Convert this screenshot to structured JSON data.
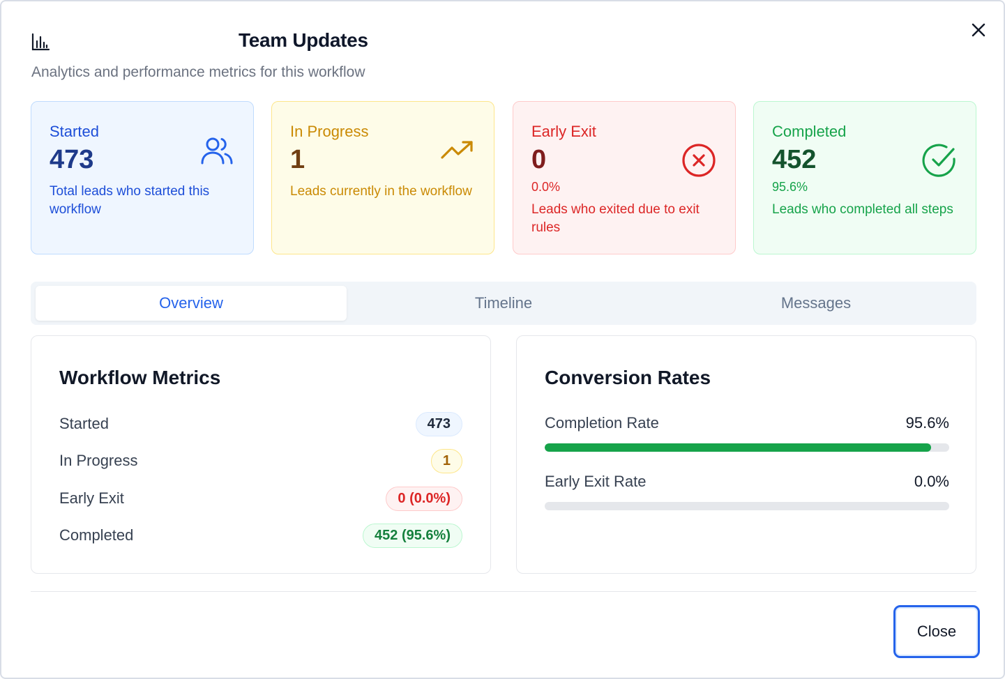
{
  "dialog": {
    "title": "Team Updates",
    "subtitle": "Analytics and performance metrics for this workflow",
    "title_icon": "bar-chart-icon",
    "close_icon": "close-icon"
  },
  "cards": {
    "started": {
      "label": "Started",
      "value": "473",
      "description": "Total leads who started this workflow",
      "icon": "users-icon",
      "color": "#1d4ed8"
    },
    "in_progress": {
      "label": "In Progress",
      "value": "1",
      "description": "Leads currently in the workflow",
      "icon": "trending-up-icon",
      "color": "#ca8a04"
    },
    "early_exit": {
      "label": "Early Exit",
      "value": "0",
      "percent": "0.0%",
      "description": "Leads who exited due to exit rules",
      "icon": "x-circle-icon",
      "color": "#dc2626"
    },
    "completed": {
      "label": "Completed",
      "value": "452",
      "percent": "95.6%",
      "description": "Leads who completed all steps",
      "icon": "check-circle-icon",
      "color": "#16a34a"
    }
  },
  "tabs": [
    {
      "label": "Overview",
      "active": true
    },
    {
      "label": "Timeline",
      "active": false
    },
    {
      "label": "Messages",
      "active": false
    }
  ],
  "metrics": {
    "title": "Workflow Metrics",
    "rows": [
      {
        "label": "Started",
        "badge": "473"
      },
      {
        "label": "In Progress",
        "badge": "1"
      },
      {
        "label": "Early Exit",
        "badge": "0 (0.0%)"
      },
      {
        "label": "Completed",
        "badge": "452 (95.6%)"
      }
    ]
  },
  "rates": {
    "title": "Conversion Rates",
    "rows": [
      {
        "label": "Completion Rate",
        "value": "95.6%",
        "fraction": 0.956
      },
      {
        "label": "Early Exit Rate",
        "value": "0.0%",
        "fraction": 0.0
      }
    ]
  },
  "footer": {
    "close_label": "Close"
  }
}
